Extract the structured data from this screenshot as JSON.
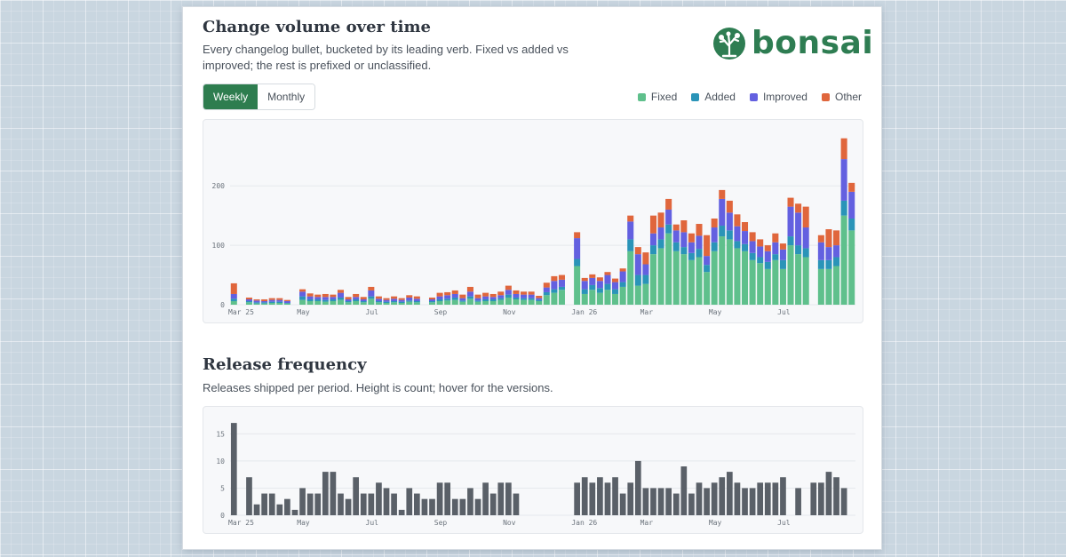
{
  "volume": {
    "title": "Change volume over time",
    "description_line1": "Every changelog bullet, bucketed by its leading verb. Fixed vs added vs",
    "description_line2": "improved; the rest is prefixed or unclassified.",
    "toggle": {
      "weekly": "Weekly",
      "monthly": "Monthly",
      "active": "Weekly"
    }
  },
  "logo": {
    "text": "bonsai",
    "icon": "bonsai-tree-icon",
    "color": "#2e7d52"
  },
  "legend": [
    {
      "label": "Fixed",
      "color": "#5fc08c"
    },
    {
      "label": "Added",
      "color": "#2a94b8"
    },
    {
      "label": "Improved",
      "color": "#6360e0"
    },
    {
      "label": "Other",
      "color": "#e0663c"
    }
  ],
  "releases": {
    "title": "Release frequency",
    "description": "Releases shipped per period. Height is count; hover for the versions."
  },
  "chart_data": [
    {
      "type": "bar",
      "stacked": true,
      "ylim": [
        0,
        290
      ],
      "y_ticks": [
        0,
        100,
        200
      ],
      "grid": true,
      "legend_position": "top-right",
      "x_ticks": [
        {
          "label": "Mar 25",
          "index": 0
        },
        {
          "label": "May",
          "index": 9
        },
        {
          "label": "Jul",
          "index": 18
        },
        {
          "label": "Sep",
          "index": 27
        },
        {
          "label": "Nov",
          "index": 36
        },
        {
          "label": "Jan 26",
          "index": 45
        },
        {
          "label": "Mar",
          "index": 54
        },
        {
          "label": "May",
          "index": 63
        },
        {
          "label": "Jul",
          "index": 72
        }
      ],
      "gaps": [
        1,
        7,
        10,
        18,
        25,
        34,
        44,
        73
      ],
      "series": [
        {
          "name": "Fixed",
          "color": "#5fc08c",
          "values": [
            6,
            0,
            4,
            2,
            2,
            3,
            3,
            2,
            0,
            8,
            6,
            6,
            5,
            6,
            8,
            4,
            6,
            4,
            10,
            4,
            3,
            4,
            3,
            5,
            4,
            0,
            4,
            6,
            7,
            8,
            5,
            10,
            5,
            6,
            6,
            8,
            12,
            9,
            8,
            8,
            6,
            16,
            20,
            25,
            0,
            65,
            18,
            25,
            20,
            25,
            18,
            30,
            90,
            32,
            35,
            85,
            95,
            120,
            90,
            85,
            75,
            80,
            55,
            90,
            115,
            110,
            95,
            90,
            75,
            70,
            60,
            75,
            60,
            100,
            85,
            80,
            0,
            60,
            60,
            65,
            150,
            125
          ]
        },
        {
          "name": "Added",
          "color": "#2a94b8",
          "values": [
            4,
            0,
            2,
            2,
            2,
            2,
            2,
            1,
            0,
            6,
            3,
            3,
            3,
            3,
            4,
            2,
            3,
            2,
            4,
            2,
            2,
            2,
            2,
            2,
            2,
            0,
            2,
            3,
            3,
            4,
            2,
            4,
            2,
            3,
            3,
            3,
            5,
            3,
            3,
            3,
            2,
            5,
            6,
            5,
            0,
            12,
            8,
            8,
            8,
            10,
            8,
            8,
            20,
            18,
            15,
            15,
            15,
            15,
            15,
            12,
            12,
            14,
            12,
            15,
            18,
            15,
            12,
            12,
            12,
            10,
            12,
            10,
            15,
            15,
            15,
            15,
            0,
            15,
            15,
            15,
            25,
            20
          ]
        },
        {
          "name": "Improved",
          "color": "#6360e0",
          "values": [
            8,
            0,
            3,
            3,
            2,
            3,
            3,
            3,
            0,
            8,
            5,
            4,
            5,
            4,
            8,
            3,
            4,
            3,
            10,
            4,
            3,
            4,
            3,
            5,
            4,
            0,
            3,
            5,
            6,
            6,
            4,
            8,
            4,
            5,
            4,
            5,
            8,
            6,
            6,
            6,
            3,
            8,
            14,
            12,
            0,
            35,
            14,
            12,
            12,
            15,
            12,
            18,
            30,
            35,
            18,
            20,
            20,
            25,
            20,
            25,
            18,
            22,
            15,
            25,
            45,
            30,
            25,
            22,
            20,
            18,
            18,
            20,
            18,
            50,
            55,
            35,
            0,
            30,
            22,
            20,
            70,
            45
          ]
        },
        {
          "name": "Other",
          "color": "#e0663c",
          "values": [
            18,
            0,
            3,
            2,
            3,
            3,
            3,
            2,
            0,
            4,
            5,
            4,
            5,
            4,
            5,
            4,
            5,
            4,
            6,
            4,
            3,
            4,
            3,
            4,
            4,
            0,
            3,
            6,
            5,
            6,
            6,
            8,
            6,
            6,
            5,
            6,
            7,
            6,
            5,
            5,
            4,
            8,
            8,
            8,
            0,
            10,
            5,
            6,
            6,
            5,
            6,
            5,
            10,
            12,
            20,
            30,
            25,
            18,
            10,
            20,
            15,
            20,
            35,
            15,
            15,
            20,
            20,
            15,
            15,
            12,
            10,
            15,
            10,
            15,
            15,
            35,
            0,
            12,
            30,
            25,
            35,
            15
          ]
        }
      ]
    },
    {
      "type": "bar",
      "ylim": [
        0,
        18
      ],
      "y_ticks": [
        0,
        5,
        10,
        15
      ],
      "grid": true,
      "color": "#5a6068",
      "x_ticks": [
        {
          "label": "Mar 25",
          "index": 0
        },
        {
          "label": "May",
          "index": 9
        },
        {
          "label": "Jul",
          "index": 18
        },
        {
          "label": "Sep",
          "index": 27
        },
        {
          "label": "Nov",
          "index": 36
        },
        {
          "label": "Jan 26",
          "index": 45
        },
        {
          "label": "Mar",
          "index": 54
        },
        {
          "label": "May",
          "index": 63
        },
        {
          "label": "Jul",
          "index": 72
        }
      ],
      "values": [
        17,
        0,
        7,
        2,
        4,
        4,
        2,
        3,
        1,
        5,
        4,
        4,
        8,
        8,
        4,
        3,
        7,
        4,
        4,
        6,
        5,
        4,
        1,
        5,
        4,
        3,
        3,
        6,
        6,
        3,
        3,
        5,
        3,
        6,
        4,
        6,
        6,
        4,
        0,
        0,
        0,
        0,
        0,
        0,
        0,
        6,
        7,
        6,
        7,
        6,
        7,
        4,
        6,
        10,
        5,
        5,
        5,
        5,
        4,
        9,
        4,
        6,
        5,
        6,
        7,
        8,
        6,
        5,
        5,
        6,
        6,
        6,
        7,
        0,
        5,
        0,
        6,
        6,
        8,
        7,
        5,
        0
      ]
    }
  ]
}
